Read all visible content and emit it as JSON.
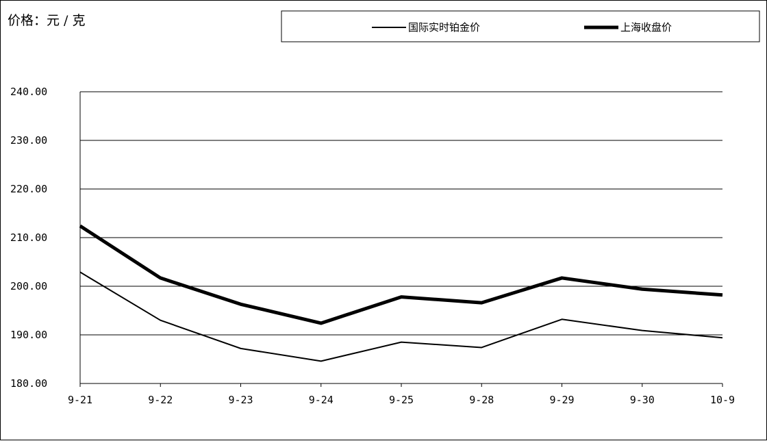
{
  "unit_label": "价格：元 / 克",
  "chart_data": {
    "type": "line",
    "title": "",
    "xlabel": "",
    "ylabel": "价格：元 / 克",
    "categories": [
      "9-21",
      "9-22",
      "9-23",
      "9-24",
      "9-25",
      "9-28",
      "9-29",
      "9-30",
      "10-9"
    ],
    "ylim": [
      180,
      240
    ],
    "yticks": [
      "180.00",
      "190.00",
      "200.00",
      "210.00",
      "220.00",
      "230.00",
      "240.00"
    ],
    "grid": true,
    "legend_position": "top",
    "series": [
      {
        "name": "国际实时铂金价",
        "values": [
          202.9,
          193.0,
          187.2,
          184.6,
          188.5,
          187.4,
          193.2,
          190.9,
          189.4
        ],
        "color": "#000000"
      },
      {
        "name": "上海收盘价",
        "values": [
          212.4,
          201.7,
          196.3,
          192.4,
          197.8,
          196.6,
          201.7,
          199.4,
          198.2
        ],
        "color": "#000000"
      }
    ]
  }
}
